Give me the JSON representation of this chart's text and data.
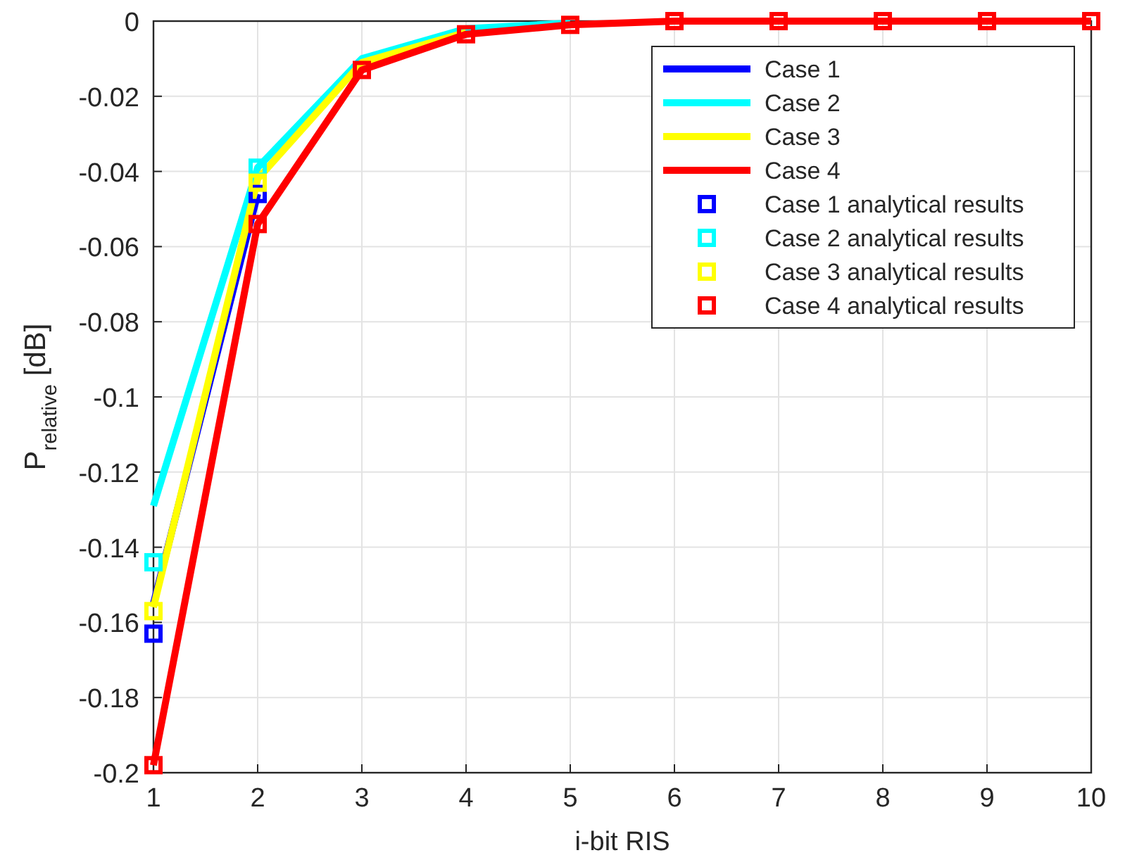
{
  "chart_data": {
    "type": "line",
    "xlabel": "i-bit RIS",
    "ylabel": "P$_{relative}$ [dB]",
    "x": [
      1,
      2,
      3,
      4,
      5,
      6,
      7,
      8,
      9,
      10
    ],
    "xlim": [
      1,
      10
    ],
    "xticks": [
      1,
      2,
      3,
      4,
      5,
      6,
      7,
      8,
      9,
      10
    ],
    "ylim": [
      -0.2,
      0
    ],
    "yticks": [
      -0.2,
      -0.18,
      -0.16,
      -0.14,
      -0.12,
      -0.1,
      -0.08,
      -0.06,
      -0.04,
      -0.02,
      0
    ],
    "grid": true,
    "legend": "top right",
    "series": [
      {
        "name": "Case 1",
        "color": "#0000ff",
        "marker": "none",
        "values": [
          -0.155,
          -0.046,
          null,
          null,
          null,
          null,
          null,
          null,
          null,
          null
        ]
      },
      {
        "name": "Case 2",
        "color": "#00ffff",
        "marker": "none",
        "values": [
          -0.129,
          -0.039,
          -0.01,
          -0.002,
          -0.0005,
          null,
          null,
          null,
          null,
          null
        ]
      },
      {
        "name": "Case 3",
        "color": "#ffff00",
        "marker": "none",
        "values": [
          -0.156,
          -0.042,
          -0.011,
          -0.003,
          null,
          null,
          null,
          null,
          null,
          null
        ]
      },
      {
        "name": "Case 4",
        "color": "#ff0000",
        "marker": "none",
        "values": [
          -0.198,
          -0.054,
          -0.013,
          -0.0035,
          -0.001,
          0,
          0,
          0,
          0,
          0
        ]
      },
      {
        "name": "Case 1 analytical results",
        "type": "scatter",
        "color": "#0000ff",
        "marker": "square",
        "values": [
          -0.163,
          -0.046,
          null,
          null,
          null,
          null,
          null,
          null,
          null,
          null
        ]
      },
      {
        "name": "Case 2 analytical results",
        "type": "scatter",
        "color": "#00ffff",
        "marker": "square",
        "values": [
          -0.144,
          -0.039,
          null,
          null,
          null,
          null,
          null,
          null,
          null,
          null
        ]
      },
      {
        "name": "Case 3 analytical results",
        "type": "scatter",
        "color": "#ffff00",
        "marker": "square",
        "values": [
          -0.157,
          -0.043,
          null,
          null,
          null,
          null,
          null,
          null,
          null,
          null
        ]
      },
      {
        "name": "Case 4 analytical results",
        "type": "scatter",
        "color": "#ff0000",
        "marker": "square",
        "values": [
          -0.198,
          -0.054,
          -0.013,
          -0.0035,
          -0.001,
          0,
          0,
          0,
          0,
          0
        ]
      }
    ]
  }
}
